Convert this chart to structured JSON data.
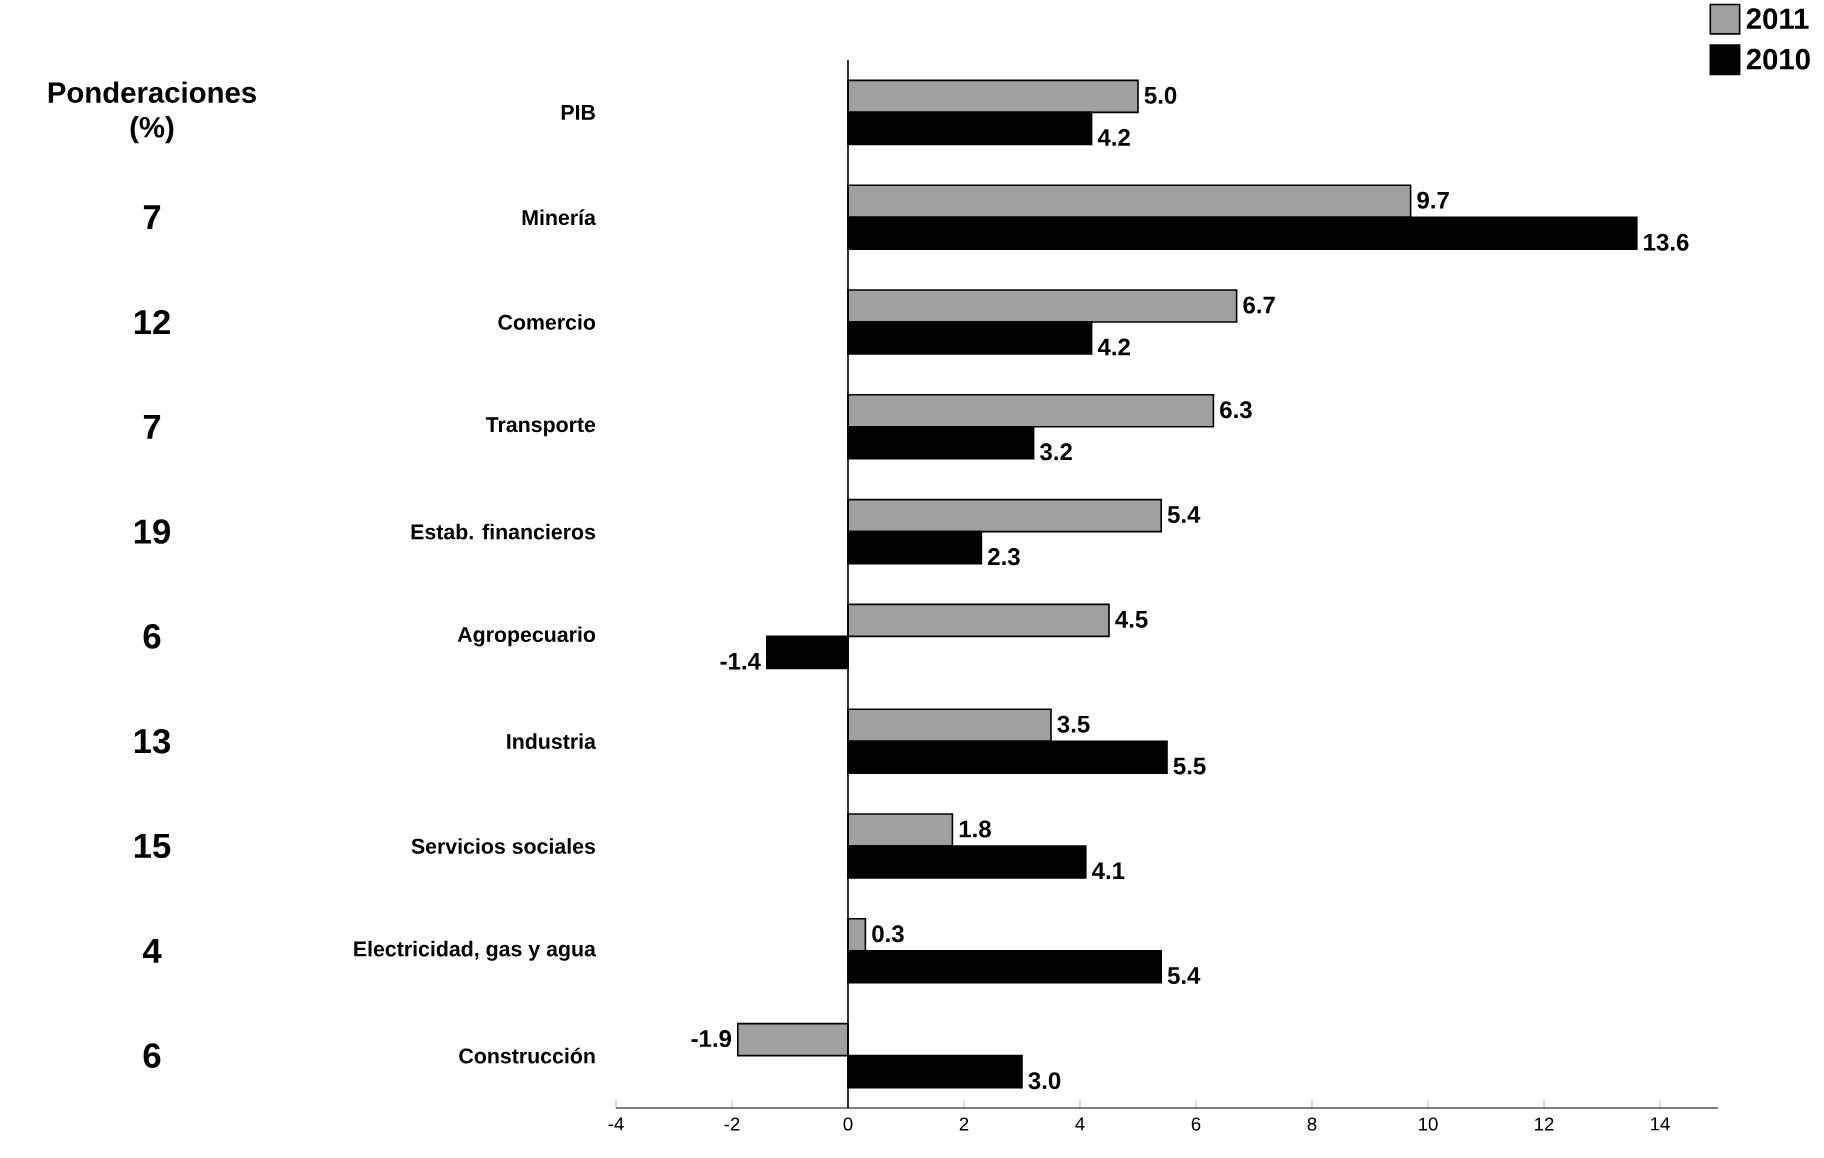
{
  "chart_data": {
    "type": "bar",
    "orientation": "horizontal",
    "categories": [
      "PIB",
      "Minería",
      "Comercio",
      "Transporte",
      "Estab. financieros",
      "Agropecuario",
      "Industria",
      "Servicios sociales",
      "Electricidad, gas y agua",
      "Construcción"
    ],
    "series": [
      {
        "name": "2011",
        "color": "#a0a0a0",
        "values": [
          5.0,
          9.7,
          6.7,
          6.3,
          5.4,
          4.5,
          3.5,
          1.8,
          0.3,
          -1.9
        ],
        "value_labels": [
          "5.0",
          "9.7",
          "6.7",
          "6.3",
          "5.4",
          "4.5",
          "3.5",
          "1.8",
          "0.3",
          "-1.9"
        ]
      },
      {
        "name": "2010",
        "color": "#000000",
        "values": [
          4.2,
          13.6,
          4.2,
          3.2,
          2.3,
          -1.4,
          5.5,
          4.1,
          5.4,
          3.0
        ],
        "value_labels": [
          "4.2",
          "13.6",
          "4.2",
          "3.2",
          "2.3",
          "-1.4",
          "5.5",
          "4.1",
          "5.4",
          "3.0"
        ]
      }
    ],
    "annotations": [
      "Ponderaciones (%)",
      "7",
      "12",
      "7",
      "19",
      "6",
      "13",
      "15",
      "4",
      "6"
    ],
    "xlim": [
      -4,
      15
    ],
    "xticks": [
      -4,
      -2,
      0,
      2,
      4,
      6,
      8,
      10,
      12,
      14
    ],
    "legend": "top right"
  }
}
